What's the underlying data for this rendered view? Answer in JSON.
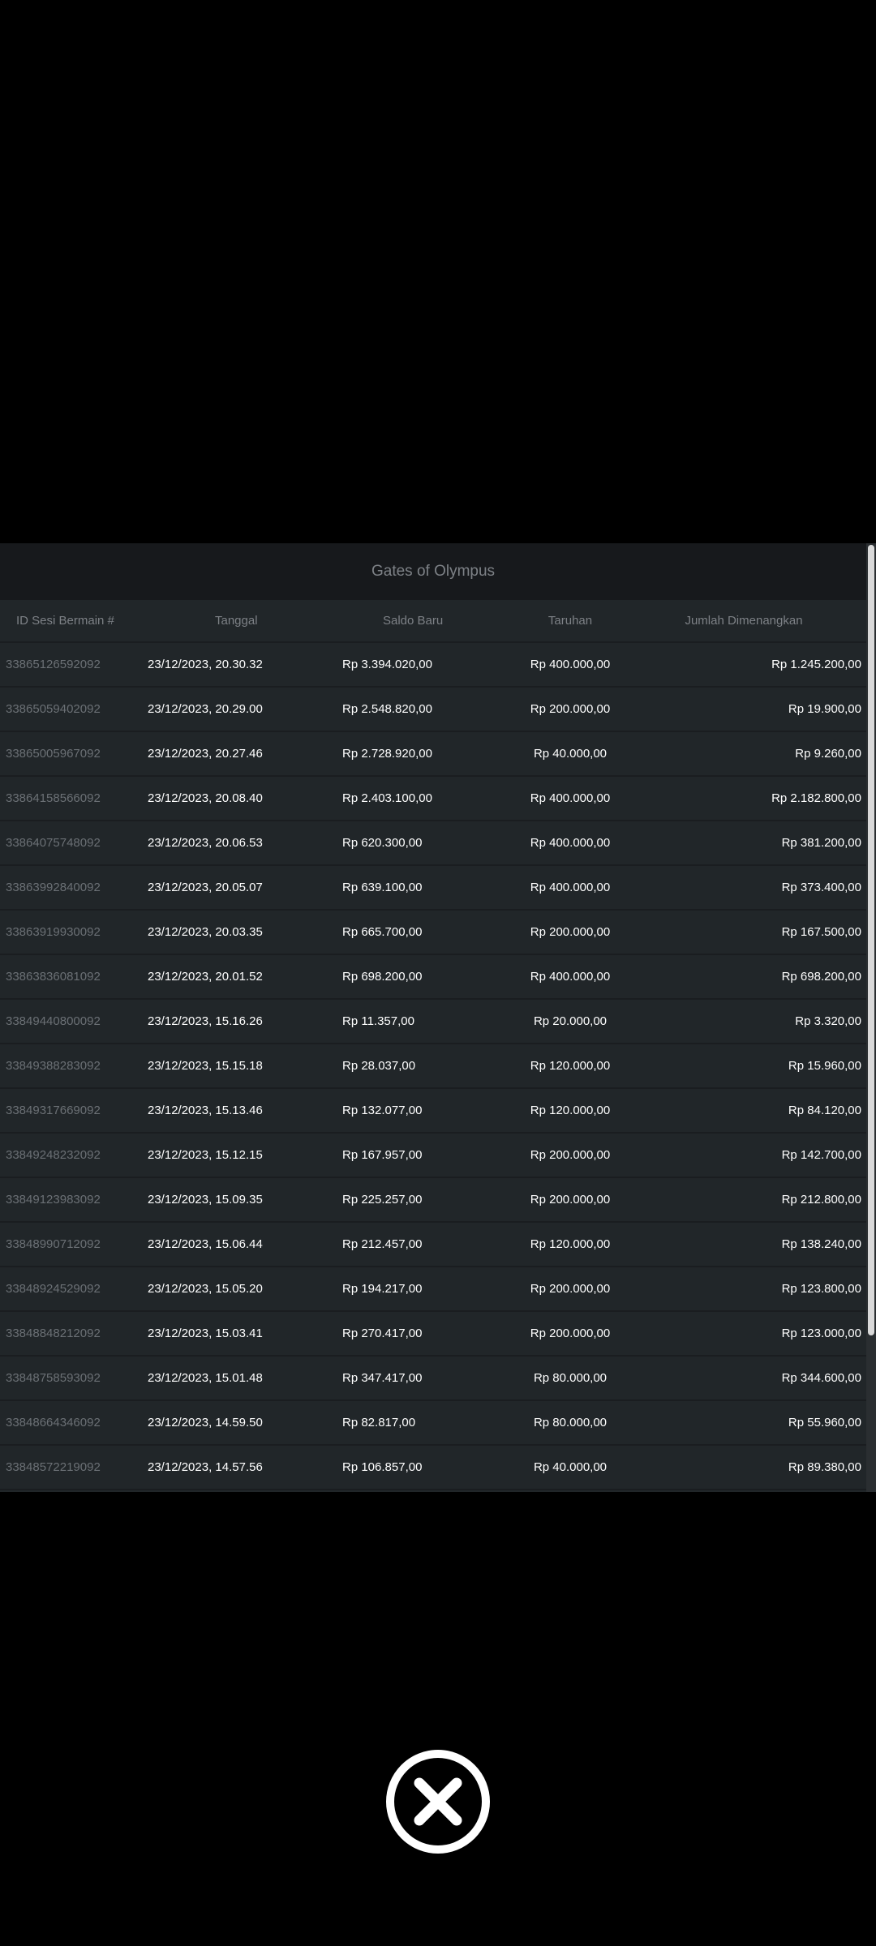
{
  "dialog": {
    "title": "Gates of Olympus",
    "close_icon": "close-circle-x-icon"
  },
  "table": {
    "headers": [
      "ID Sesi Bermain #",
      "Tanggal",
      "Saldo Baru",
      "Taruhan",
      "Jumlah Dimenangkan"
    ],
    "rows": [
      [
        "33865126592092",
        "23/12/2023, 20.30.32",
        "Rp 3.394.020,00",
        "Rp 400.000,00",
        "Rp 1.245.200,00"
      ],
      [
        "33865059402092",
        "23/12/2023, 20.29.00",
        "Rp 2.548.820,00",
        "Rp 200.000,00",
        "Rp 19.900,00"
      ],
      [
        "33865005967092",
        "23/12/2023, 20.27.46",
        "Rp 2.728.920,00",
        "Rp 40.000,00",
        "Rp 9.260,00"
      ],
      [
        "33864158566092",
        "23/12/2023, 20.08.40",
        "Rp 2.403.100,00",
        "Rp 400.000,00",
        "Rp 2.182.800,00"
      ],
      [
        "33864075748092",
        "23/12/2023, 20.06.53",
        "Rp 620.300,00",
        "Rp 400.000,00",
        "Rp 381.200,00"
      ],
      [
        "33863992840092",
        "23/12/2023, 20.05.07",
        "Rp 639.100,00",
        "Rp 400.000,00",
        "Rp 373.400,00"
      ],
      [
        "33863919930092",
        "23/12/2023, 20.03.35",
        "Rp 665.700,00",
        "Rp 200.000,00",
        "Rp 167.500,00"
      ],
      [
        "33863836081092",
        "23/12/2023, 20.01.52",
        "Rp 698.200,00",
        "Rp 400.000,00",
        "Rp 698.200,00"
      ],
      [
        "33849440800092",
        "23/12/2023, 15.16.26",
        "Rp 11.357,00",
        "Rp 20.000,00",
        "Rp 3.320,00"
      ],
      [
        "33849388283092",
        "23/12/2023, 15.15.18",
        "Rp 28.037,00",
        "Rp 120.000,00",
        "Rp 15.960,00"
      ],
      [
        "33849317669092",
        "23/12/2023, 15.13.46",
        "Rp 132.077,00",
        "Rp 120.000,00",
        "Rp 84.120,00"
      ],
      [
        "33849248232092",
        "23/12/2023, 15.12.15",
        "Rp 167.957,00",
        "Rp 200.000,00",
        "Rp 142.700,00"
      ],
      [
        "33849123983092",
        "23/12/2023, 15.09.35",
        "Rp 225.257,00",
        "Rp 200.000,00",
        "Rp 212.800,00"
      ],
      [
        "33848990712092",
        "23/12/2023, 15.06.44",
        "Rp 212.457,00",
        "Rp 120.000,00",
        "Rp 138.240,00"
      ],
      [
        "33848924529092",
        "23/12/2023, 15.05.20",
        "Rp 194.217,00",
        "Rp 200.000,00",
        "Rp 123.800,00"
      ],
      [
        "33848848212092",
        "23/12/2023, 15.03.41",
        "Rp 270.417,00",
        "Rp 200.000,00",
        "Rp 123.000,00"
      ],
      [
        "33848758593092",
        "23/12/2023, 15.01.48",
        "Rp 347.417,00",
        "Rp 80.000,00",
        "Rp 344.600,00"
      ],
      [
        "33848664346092",
        "23/12/2023, 14.59.50",
        "Rp 82.817,00",
        "Rp 80.000,00",
        "Rp 55.960,00"
      ],
      [
        "33848572219092",
        "23/12/2023, 14.57.56",
        "Rp 106.857,00",
        "Rp 40.000,00",
        "Rp 89.380,00"
      ]
    ]
  }
}
